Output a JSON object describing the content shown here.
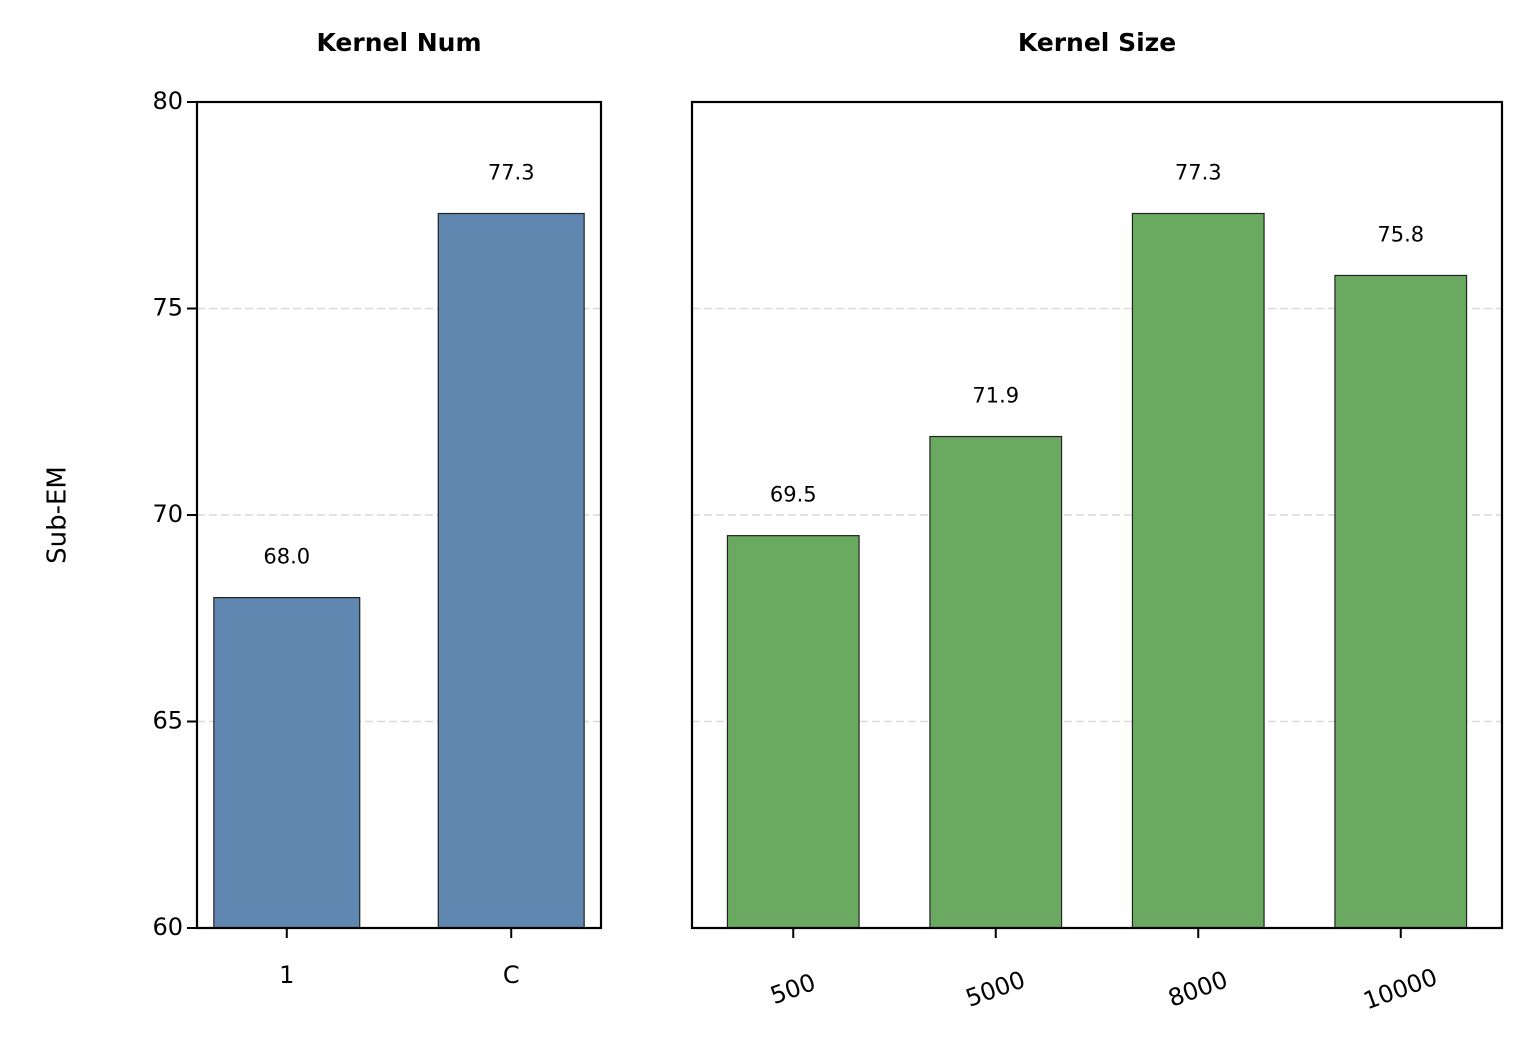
{
  "chart_data": [
    {
      "type": "bar",
      "title": "Kernel Num",
      "ylabel": "Sub-EM",
      "categories": [
        "1",
        "C"
      ],
      "values": [
        68.0,
        77.3
      ],
      "value_labels": [
        "68.0",
        "77.3"
      ],
      "color": "#5f87b0",
      "ylim": [
        60,
        80
      ],
      "yticks": [
        60,
        65,
        70,
        75,
        80
      ],
      "grid": true
    },
    {
      "type": "bar",
      "title": "Kernel Size",
      "categories": [
        "500",
        "5000",
        "8000",
        "10000"
      ],
      "values": [
        69.5,
        71.9,
        77.3,
        75.8
      ],
      "color": "#6aaa60",
      "ylim": [
        60,
        80
      ],
      "yticks": [
        60,
        65,
        70,
        75,
        80
      ],
      "grid": true,
      "sharey": true
    }
  ]
}
